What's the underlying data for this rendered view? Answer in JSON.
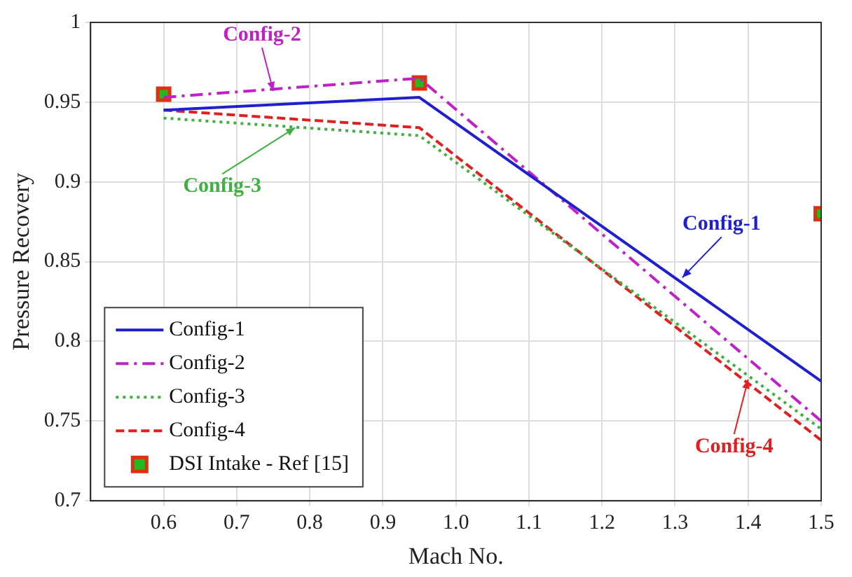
{
  "chart_data": {
    "type": "line",
    "xlabel": "Mach No.",
    "ylabel": "Pressure Recovery",
    "xlim": [
      0.5,
      1.5
    ],
    "xticks": [
      0.6,
      0.7,
      0.8,
      0.9,
      {
        "value": 1,
        "label": "1.0"
      },
      1.1,
      1.2,
      1.3,
      1.4,
      1.5
    ],
    "ylim": [
      0.7,
      1
    ],
    "yticks": [
      0.7,
      0.75,
      0.8,
      0.85,
      0.9,
      0.95,
      1
    ],
    "grid": true,
    "legend": "bottom left",
    "series": [
      {
        "name": "Config-1",
        "color": "#1f1fd0",
        "x": [
          0.6,
          0.95,
          1.5
        ],
        "values": [
          0.945,
          0.953,
          0.775
        ],
        "line_style": "solid",
        "marker": "none"
      },
      {
        "name": "Config-2",
        "color": "#c020c8",
        "x": [
          0.6,
          0.95,
          1.5
        ],
        "values": [
          0.953,
          0.965,
          0.75
        ],
        "line_style": "dashdot",
        "marker": "none"
      },
      {
        "name": "Config-3",
        "color": "#40b040",
        "x": [
          0.6,
          0.95,
          1.5
        ],
        "values": [
          0.94,
          0.929,
          0.745
        ],
        "line_style": "dotted",
        "marker": "none"
      },
      {
        "name": "Config-4",
        "color": "#e02020",
        "x": [
          0.6,
          0.95,
          1.5
        ],
        "values": [
          0.945,
          0.934,
          0.738
        ],
        "line_style": "dashed",
        "marker": "none"
      },
      {
        "name": "DSI Intake - Ref [15]",
        "type": "scatter",
        "color": "#22b822",
        "x": [
          0.6,
          0.95,
          1.5
        ],
        "values": [
          0.955,
          0.962,
          0.88
        ],
        "marker": "square"
      }
    ],
    "annotations": [
      {
        "text": "Config-1",
        "x": 1.31,
        "y": 0.84
      },
      {
        "text": "Config-2",
        "x": 0.75,
        "y": 0.957
      },
      {
        "text": "Config-3",
        "x": 0.78,
        "y": 0.934
      },
      {
        "text": "Config-4",
        "x": 1.4,
        "y": 0.776
      }
    ]
  }
}
